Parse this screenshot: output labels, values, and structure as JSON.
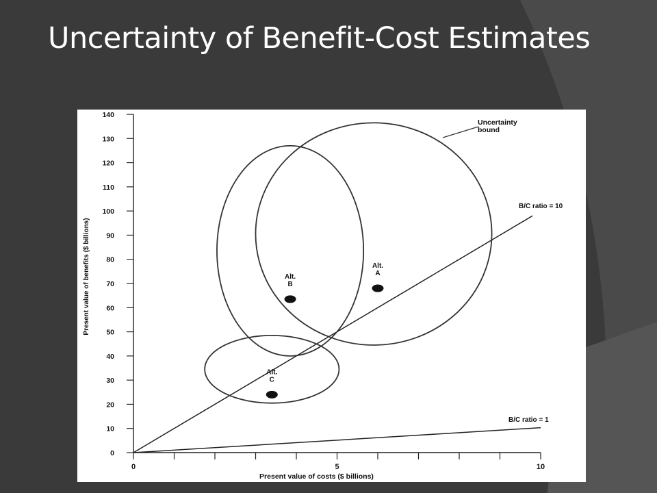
{
  "slide": {
    "title": "Uncertainty of Benefit-Cost Estimates"
  },
  "chart_data": {
    "type": "scatter",
    "xlabel": "Present value of costs ($ billions)",
    "ylabel": "Present value of benefits ($ billions)",
    "xlim": [
      0,
      10
    ],
    "ylim": [
      0,
      140
    ],
    "x_ticks": [
      0,
      1,
      2,
      3,
      4,
      5,
      6,
      7,
      8,
      9,
      10
    ],
    "x_tick_labels": [
      "0",
      "",
      "",
      "",
      "",
      "5",
      "",
      "",
      "",
      "",
      "10"
    ],
    "y_ticks": [
      0,
      10,
      20,
      30,
      40,
      50,
      60,
      70,
      80,
      90,
      100,
      110,
      120,
      130,
      140
    ],
    "points": [
      {
        "label": "Alt. A",
        "x": 6.0,
        "y": 68
      },
      {
        "label": "Alt. B",
        "x": 3.85,
        "y": 63.5
      },
      {
        "label": "Alt. C",
        "x": 3.4,
        "y": 24
      }
    ],
    "uncertainty_bounds": [
      {
        "alt": "A",
        "cx": 5.9,
        "cy": 90.5,
        "rx": 2.9,
        "ry": 46
      },
      {
        "alt": "B",
        "cx": 3.85,
        "cy": 83.5,
        "rx": 1.8,
        "ry": 43.5
      },
      {
        "alt": "C",
        "cx": 3.4,
        "cy": 34.5,
        "rx": 1.65,
        "ry": 14
      }
    ],
    "reference_lines": [
      {
        "label": "B/C ratio = 10",
        "x": [
          0,
          9.8
        ],
        "y": [
          0,
          98
        ]
      },
      {
        "label": "B/C ratio = 1",
        "x": [
          0,
          10
        ],
        "y": [
          0,
          10.3
        ]
      }
    ],
    "annotations": [
      {
        "text": "Uncertainty bound",
        "lines": [
          "Uncertainty",
          "bound"
        ]
      }
    ],
    "grid": false,
    "legend": "none"
  }
}
